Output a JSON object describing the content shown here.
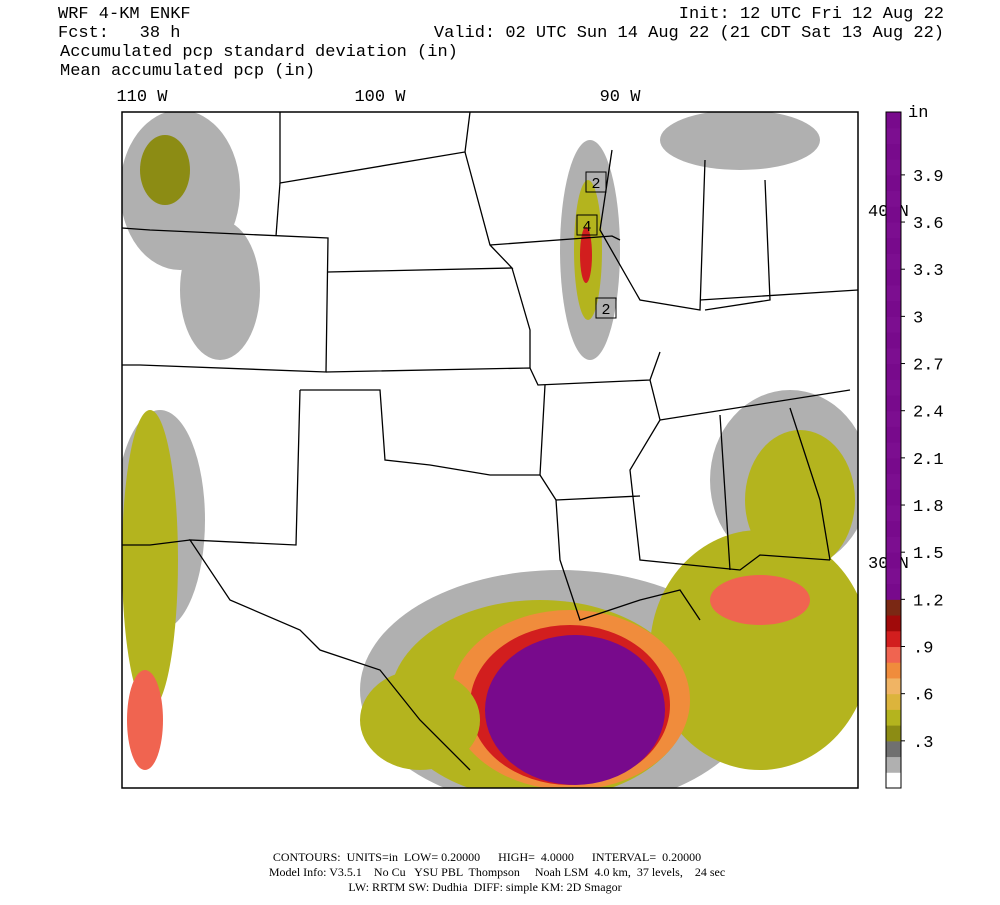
{
  "header": {
    "left": [
      "WRF 4-KM ENKF",
      "Fcst:   38 h"
    ],
    "right": [
      "Init: 12 UTC Fri 12 Aug 22",
      "Valid: 02 UTC Sun 14 Aug 22 (21 CDT Sat 13 Aug 22)"
    ],
    "fields": [
      "Accumulated pcp standard deviation (in)",
      "Mean accumulated pcp (in)"
    ]
  },
  "map": {
    "lon_labels": [
      "110 W",
      "100 W",
      "90 W"
    ],
    "lat_labels": [
      "40 N",
      "30 N"
    ],
    "boxes": [
      "2",
      "4",
      "2"
    ]
  },
  "colorbar": {
    "unit": "in",
    "lim": [
      0,
      4.3
    ],
    "colors": [
      "#ffffff",
      "#b0b0b0",
      "#707070",
      "#8c8c14",
      "#b4b41e",
      "#dcb43c",
      "#f0b464",
      "#f08c3c",
      "#f06450",
      "#d21e1e",
      "#a00a0a",
      "#7a2814",
      "#780a8c",
      "#7c0e90",
      "#780a8c",
      "#7c0e90",
      "#780a8c",
      "#7c0e90",
      "#780a8c",
      "#7c0e90",
      "#780a8c",
      "#7c0e90",
      "#780a8c",
      "#7c0e90",
      "#780a8c",
      "#7c0e90",
      "#780a8c",
      "#7c0e90",
      "#780a8c",
      "#7c0e90",
      "#780a8c",
      "#7c0e90",
      "#780a8c",
      "#7c0e90",
      "#780a8c",
      "#7c0e90",
      "#780a8c",
      "#7c0e90",
      "#780a8c",
      "#7c0e90",
      "#780a8c",
      "#7c0e90",
      "#780a8c"
    ],
    "ticks": [
      {
        "value": 0.3,
        "label": ".3"
      },
      {
        "value": 0.6,
        "label": ".6"
      },
      {
        "value": 0.9,
        "label": ".9"
      },
      1.2,
      1.5,
      1.8,
      2.1,
      2.4,
      2.7,
      3,
      3.3,
      3.6,
      3.9
    ]
  },
  "footer": [
    "CONTOURS:  UNITS=in  LOW= 0.20000      HIGH=  4.0000      INTERVAL=  0.20000",
    "Model Info: V3.5.1    No Cu   YSU PBL  Thompson     Noah LSM  4.0 km,  37 levels,    24 sec",
    "LW: RRTM SW: Dudhia  DIFF: simple KM: 2D Smagor"
  ]
}
